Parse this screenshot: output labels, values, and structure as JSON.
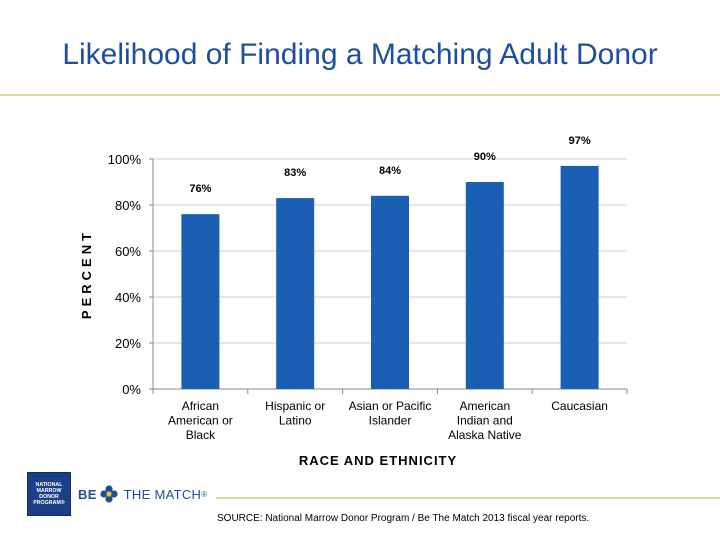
{
  "slide": {
    "title": "Likelihood of Finding a Matching Adult Donor",
    "source": "SOURCE: National Marrow Donor Program / Be The Match 2013 fiscal year reports."
  },
  "logos": {
    "nmdp_lines": [
      "NATIONAL",
      "MARROW",
      "DONOR",
      "PROGRAM®"
    ],
    "nmdp_color": "#1a3f86",
    "btm_be": "BE",
    "btm_rest": "THE MATCH",
    "btm_mark": "®",
    "btm_color": "#1f4e9b"
  },
  "chart_data": {
    "type": "bar",
    "categories": [
      [
        "African",
        "American or",
        "Black"
      ],
      [
        "Hispanic or",
        "Latino"
      ],
      [
        "Asian or Pacific",
        "Islander"
      ],
      [
        "American",
        "Indian and",
        "Alaska Native"
      ],
      [
        "Caucasian"
      ]
    ],
    "values": [
      76,
      83,
      84,
      90,
      97
    ],
    "data_labels": [
      "76%",
      "83%",
      "84%",
      "90%",
      "97%"
    ],
    "xlabel": "RACE AND ETHNICITY",
    "ylabel": "PERCENT",
    "ylim": [
      0,
      100
    ],
    "yticks": [
      0,
      20,
      40,
      60,
      80,
      100
    ],
    "ytick_labels": [
      "0%",
      "20%",
      "40%",
      "60%",
      "80%",
      "100%"
    ],
    "grid": true,
    "bar_color": "#1a5fb4",
    "grid_color": "#cccccc"
  }
}
